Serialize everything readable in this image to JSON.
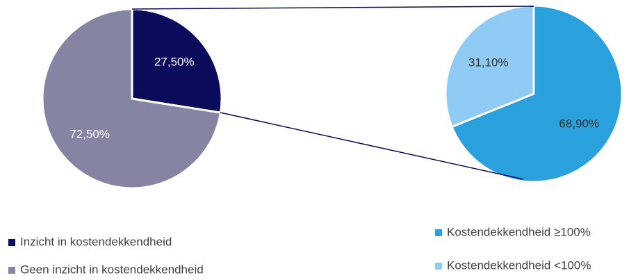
{
  "chart_data": [
    {
      "type": "pie",
      "categories": [
        "Inzicht in kostendekkendheid",
        "Geen inzicht in kostendekkendheid"
      ],
      "values": [
        27.5,
        72.5
      ],
      "value_labels": [
        "27,50%",
        "72,50%"
      ],
      "colors": [
        "#0b0b5c",
        "#8585a3"
      ]
    },
    {
      "type": "pie",
      "categories": [
        "Kostendekkendheid ≥100%",
        "Kostendekkendheid <100%"
      ],
      "values": [
        68.9,
        31.1
      ],
      "value_labels": [
        "68,90%",
        "31,10%"
      ],
      "colors": [
        "#2aa0dc",
        "#8fcbf4"
      ]
    }
  ]
}
